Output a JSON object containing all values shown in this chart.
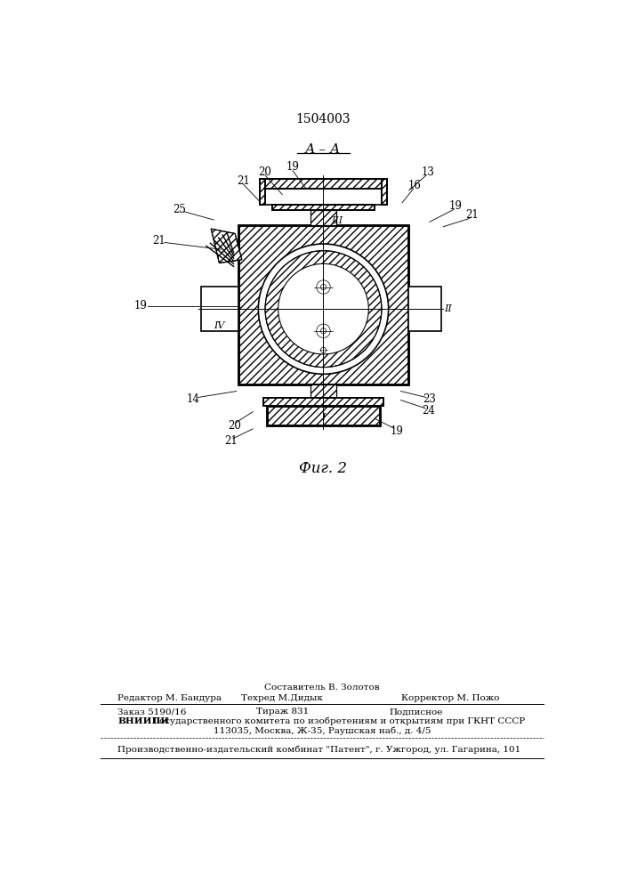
{
  "patent_number": "1504003",
  "section_label": "А – А",
  "fig_label": "Фиг. 2",
  "bg_color": "#ffffff",
  "footer": {
    "line1_center": "Составитель В. Золотов",
    "line2_left": "Редактор М. Бандура",
    "line2_center": "Техред М.Дидык",
    "line2_right": "Корректор М. Пожо",
    "line3_left": "Заказ 5190/16",
    "line3_center": "Тираж 831",
    "line3_right": "Подписное",
    "line4_bold": "ВНИИПИ",
    "line4_rest": " Государственного комитета по изобретениям и открытиям при ГКНТ СССР",
    "line5": "113035, Москва, Ж-35, Раушская наб., д. 4/5",
    "line6": "Производственно-издательский комбинат \"Патент\", г. Ужгород, ул. Гагарина, 101"
  }
}
